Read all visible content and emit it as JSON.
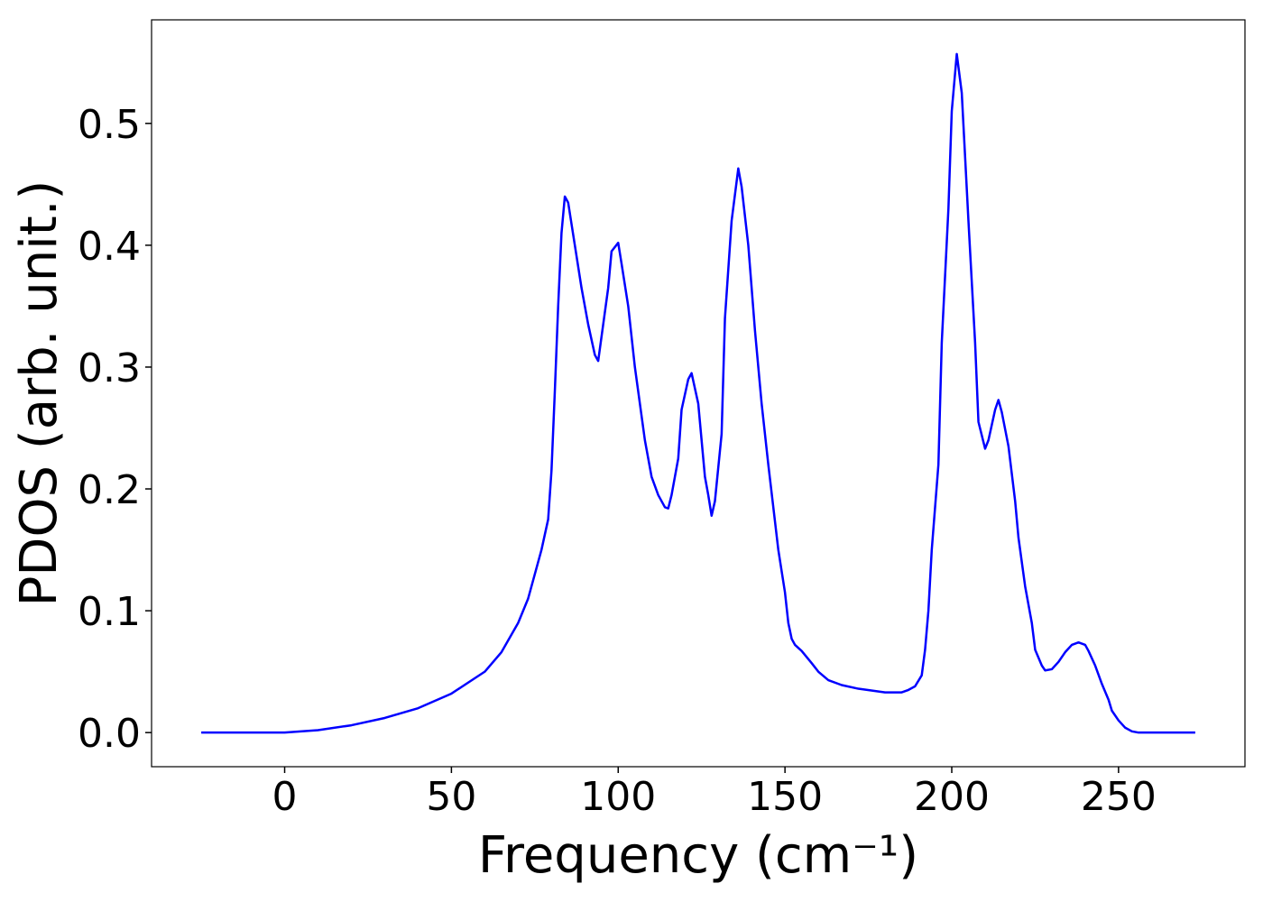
{
  "chart_data": {
    "type": "line",
    "xlabel": "Frequency (cm⁻¹)",
    "ylabel": "PDOS (arb. unit.)",
    "color": "#0000ff",
    "x": [
      -25,
      0,
      10,
      20,
      30,
      40,
      50,
      60,
      65,
      70,
      73,
      75,
      77,
      79,
      80,
      81,
      82,
      83,
      84,
      85,
      87,
      89,
      91,
      93,
      94,
      95,
      97,
      98,
      100,
      101,
      103,
      105,
      108,
      110,
      112,
      114,
      115,
      116,
      118,
      119,
      121,
      122,
      124,
      126,
      127,
      128,
      129,
      131,
      132,
      134,
      136,
      137,
      139,
      141,
      143,
      145,
      148,
      150,
      151,
      152,
      153,
      155,
      158,
      160,
      163,
      167,
      172,
      180,
      185,
      187,
      189,
      191,
      192,
      193,
      194,
      196,
      197,
      199,
      200,
      201.5,
      203,
      205,
      207,
      208,
      210,
      211,
      213,
      214,
      215,
      217,
      219,
      220,
      222,
      224,
      225,
      227,
      228,
      230,
      232,
      234,
      236,
      238,
      240,
      241,
      243,
      245,
      247,
      248,
      250,
      252,
      254,
      256,
      273
    ],
    "values": [
      0,
      0,
      0.002,
      0.006,
      0.012,
      0.02,
      0.032,
      0.05,
      0.066,
      0.09,
      0.11,
      0.13,
      0.15,
      0.175,
      0.215,
      0.28,
      0.35,
      0.41,
      0.44,
      0.435,
      0.4,
      0.365,
      0.335,
      0.31,
      0.305,
      0.325,
      0.365,
      0.395,
      0.402,
      0.385,
      0.35,
      0.3,
      0.24,
      0.21,
      0.195,
      0.185,
      0.184,
      0.195,
      0.225,
      0.265,
      0.29,
      0.295,
      0.27,
      0.21,
      0.195,
      0.178,
      0.19,
      0.245,
      0.34,
      0.42,
      0.463,
      0.448,
      0.4,
      0.33,
      0.27,
      0.22,
      0.15,
      0.115,
      0.09,
      0.077,
      0.072,
      0.067,
      0.057,
      0.05,
      0.043,
      0.039,
      0.036,
      0.033,
      0.033,
      0.035,
      0.038,
      0.047,
      0.068,
      0.1,
      0.15,
      0.22,
      0.32,
      0.43,
      0.51,
      0.557,
      0.525,
      0.42,
      0.32,
      0.255,
      0.233,
      0.24,
      0.265,
      0.273,
      0.263,
      0.235,
      0.19,
      0.16,
      0.12,
      0.09,
      0.068,
      0.055,
      0.051,
      0.052,
      0.058,
      0.066,
      0.072,
      0.074,
      0.072,
      0.067,
      0.055,
      0.04,
      0.027,
      0.018,
      0.01,
      0.004,
      0.001,
      0,
      0
    ],
    "xlim": [
      -39.9,
      287.9
    ],
    "ylim": [
      -0.028,
      0.585
    ],
    "xticks": [
      0,
      50,
      100,
      150,
      200,
      250
    ],
    "yticks": [
      {
        "value": 0,
        "label": "0.0"
      },
      0.1,
      0.2,
      0.3,
      0.4,
      0.5
    ]
  }
}
